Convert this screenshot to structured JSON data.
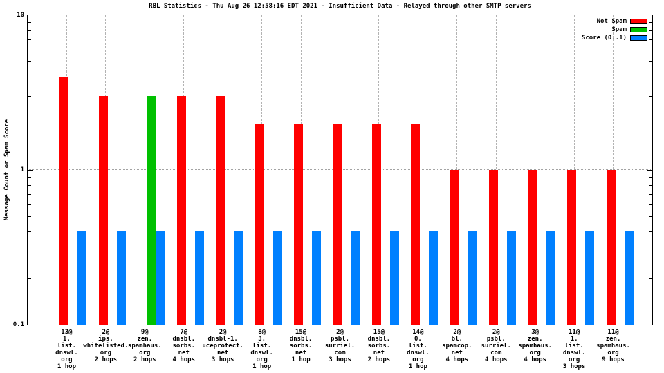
{
  "chart_data": {
    "type": "bar",
    "title": "RBL Statistics - Thu Aug 26 12:58:16 EDT 2021 - Insufficient Data - Relayed through other SMTP servers",
    "ylabel": "Message Count or Spam Score",
    "y_scale": "log",
    "ylim": [
      0.1,
      10
    ],
    "y_tick_labels": [
      "10",
      "1",
      "0.1"
    ],
    "grid": {
      "h_dotted_at": 1,
      "v_dashed_per_category": true
    },
    "legend_position": "top-right-inside",
    "categories": [
      [
        "13@",
        "1.",
        "list.",
        "dnswl.",
        "org",
        "1 hop"
      ],
      [
        "2@",
        "ips.",
        "whitelisted.",
        "org",
        "2 hops"
      ],
      [
        "9@",
        "zen.",
        "spamhaus.",
        "org",
        "2 hops"
      ],
      [
        "7@",
        "dnsbl.",
        "sorbs.",
        "net",
        "4 hops"
      ],
      [
        "2@",
        "dnsbl-1.",
        "uceprotect.",
        "net",
        "3 hops"
      ],
      [
        "8@",
        "3.",
        "list.",
        "dnswl.",
        "org",
        "1 hop"
      ],
      [
        "15@",
        "dnsbl.",
        "sorbs.",
        "net",
        "1 hop"
      ],
      [
        "2@",
        "psbl.",
        "surriel.",
        "com",
        "3 hops"
      ],
      [
        "15@",
        "dnsbl.",
        "sorbs.",
        "net",
        "2 hops"
      ],
      [
        "14@",
        "0.",
        "list.",
        "dnswl.",
        "org",
        "1 hop"
      ],
      [
        "2@",
        "bl.",
        "spamcop.",
        "net",
        "4 hops"
      ],
      [
        "2@",
        "psbl.",
        "surriel.",
        "com",
        "4 hops"
      ],
      [
        "3@",
        "zen.",
        "spamhaus.",
        "org",
        "4 hops"
      ],
      [
        "11@",
        "1.",
        "list.",
        "dnswl.",
        "org",
        "3 hops"
      ],
      [
        "11@",
        "zen.",
        "spamhaus.",
        "org",
        "9 hops"
      ]
    ],
    "series": [
      {
        "name": "Not Spam",
        "color": "#ff0000",
        "values": [
          4,
          3,
          0,
          3,
          3,
          2,
          2,
          2,
          2,
          2,
          1,
          1,
          1,
          1,
          1
        ]
      },
      {
        "name": "Spam",
        "color": "#00c000",
        "values": [
          0,
          0,
          3,
          0,
          0,
          0,
          0,
          0,
          0,
          0,
          0,
          0,
          0,
          0,
          0
        ]
      },
      {
        "name": "Score (0..1)",
        "color": "#0080ff",
        "values": [
          0.4,
          0.4,
          0.4,
          0.4,
          0.4,
          0.4,
          0.4,
          0.4,
          0.4,
          0.4,
          0.4,
          0.4,
          0.4,
          0.4,
          0.4
        ]
      }
    ]
  }
}
